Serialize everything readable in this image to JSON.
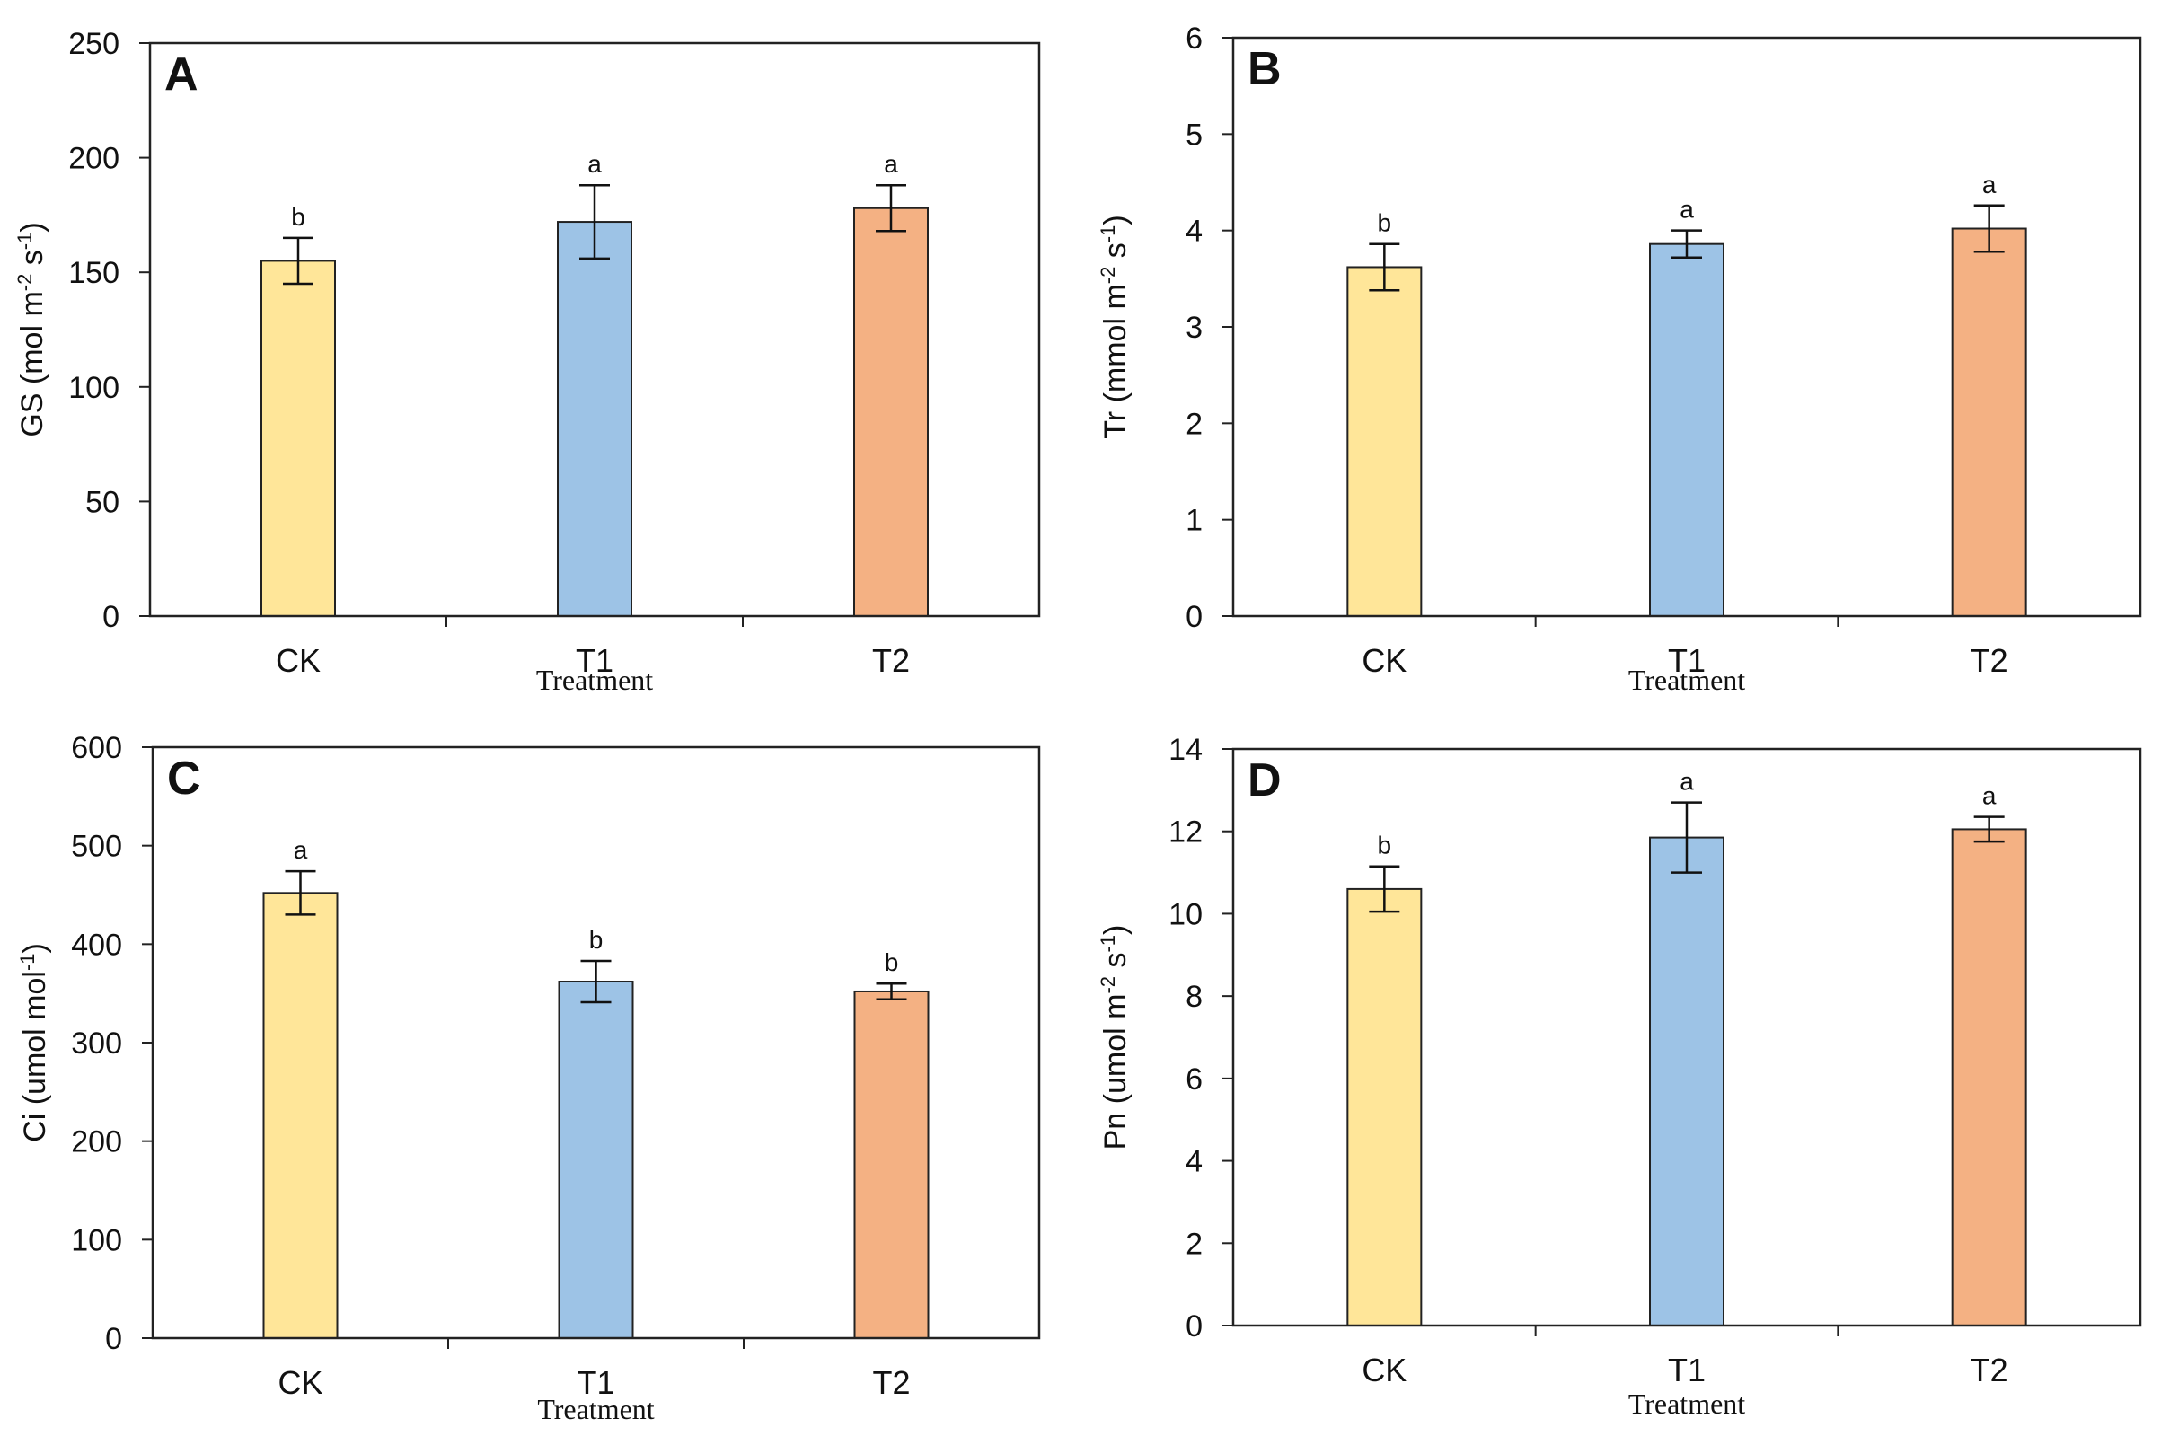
{
  "figure": {
    "colors": {
      "CK": "#FFE699",
      "T1": "#9DC3E6",
      "T2": "#F4B183",
      "axis": "#222222"
    }
  },
  "chart_data": [
    {
      "panel_letter": "A",
      "type": "bar",
      "categories": [
        "CK",
        "T1",
        "T2"
      ],
      "values": [
        155,
        172,
        178
      ],
      "errors": [
        10,
        16,
        10
      ],
      "significance": [
        "b",
        "a",
        "a"
      ],
      "ylim": [
        0,
        250
      ],
      "yticks": [
        "0",
        "50",
        "100",
        "150",
        "200",
        "250"
      ],
      "ylabel_main": "GS (mol m",
      "ylabel_sup1": "-2",
      "ylabel_mid": " s",
      "ylabel_sup2": "-1",
      "ylabel_end": ")",
      "xlabel": "Treatment"
    },
    {
      "panel_letter": "B",
      "type": "bar",
      "categories": [
        "CK",
        "T1",
        "T2"
      ],
      "values": [
        3.62,
        3.86,
        4.02
      ],
      "errors": [
        0.24,
        0.14,
        0.24
      ],
      "significance": [
        "b",
        "a",
        "a"
      ],
      "ylim": [
        0,
        6
      ],
      "yticks": [
        "0",
        "1",
        "2",
        "3",
        "4",
        "5",
        "6"
      ],
      "ylabel_main": "Tr (mmol m",
      "ylabel_sup1": "-2",
      "ylabel_mid": " s",
      "ylabel_sup2": "-1",
      "ylabel_end": ")",
      "xlabel": "Treatment"
    },
    {
      "panel_letter": "C",
      "type": "bar",
      "categories": [
        "CK",
        "T1",
        "T2"
      ],
      "values": [
        452,
        362,
        352
      ],
      "errors": [
        22,
        21,
        8
      ],
      "significance": [
        "a",
        "b",
        "b"
      ],
      "ylim": [
        0,
        600
      ],
      "yticks": [
        "0",
        "100",
        "200",
        "300",
        "400",
        "500",
        "600"
      ],
      "ylabel_main": "Ci (umol mol",
      "ylabel_sup1": "-1",
      "ylabel_mid": "",
      "ylabel_sup2": "",
      "ylabel_end": ")",
      "xlabel": "Treatment"
    },
    {
      "panel_letter": "D",
      "type": "bar",
      "categories": [
        "CK",
        "T1",
        "T2"
      ],
      "values": [
        10.6,
        11.85,
        12.05
      ],
      "errors": [
        0.55,
        0.85,
        0.3
      ],
      "significance": [
        "b",
        "a",
        "a"
      ],
      "ylim": [
        0,
        14
      ],
      "yticks": [
        "0",
        "2",
        "4",
        "6",
        "8",
        "10",
        "12",
        "14"
      ],
      "ylabel_main": "Pn (umol m",
      "ylabel_sup1": "-2",
      "ylabel_mid": " s",
      "ylabel_sup2": "-1",
      "ylabel_end": ")",
      "xlabel": "Treatment"
    }
  ]
}
